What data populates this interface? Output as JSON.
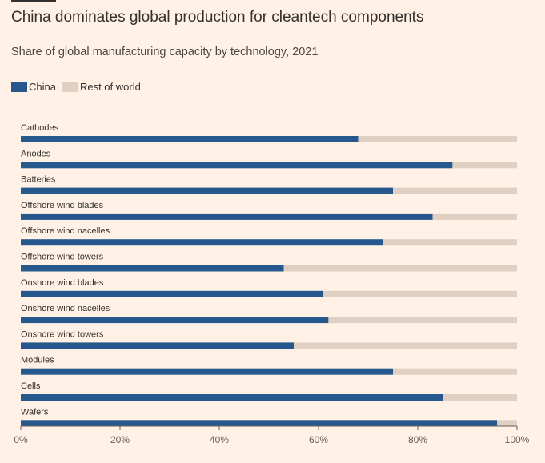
{
  "header": {
    "title": "China dominates global production for cleantech components",
    "subtitle": "Share of global manufacturing capacity by technology, 2021"
  },
  "legend": {
    "items": [
      {
        "label": "China",
        "color": "#26588e"
      },
      {
        "label": "Rest of world",
        "color": "#e0d0c4"
      }
    ]
  },
  "chart_data": {
    "type": "bar",
    "orientation": "horizontal",
    "stacked": true,
    "title": "China dominates global production for cleantech components",
    "subtitle": "Share of global manufacturing capacity by technology, 2021",
    "categories": [
      "Cathodes",
      "Anodes",
      "Batteries",
      "Offshore wind blades",
      "Offshore wind nacelles",
      "Offshore wind towers",
      "Onshore wind blades",
      "Onshore wind nacelles",
      "Onshore wind towers",
      "Modules",
      "Cells",
      "Wafers"
    ],
    "series": [
      {
        "name": "China",
        "color": "#26588e",
        "values": [
          68,
          87,
          75,
          83,
          73,
          53,
          61,
          62,
          55,
          75,
          85,
          96
        ]
      },
      {
        "name": "Rest of world",
        "color": "#e0d0c4",
        "values": [
          32,
          13,
          25,
          17,
          27,
          47,
          39,
          38,
          45,
          25,
          15,
          4
        ]
      }
    ],
    "xlim": [
      0,
      100
    ],
    "x_ticks": [
      0,
      20,
      40,
      60,
      80,
      100
    ],
    "x_tick_labels": [
      "0%",
      "20%",
      "40%",
      "60%",
      "80%",
      "100%"
    ],
    "xlabel": "",
    "ylabel": "",
    "grid": false,
    "legend_position": "top-left"
  }
}
